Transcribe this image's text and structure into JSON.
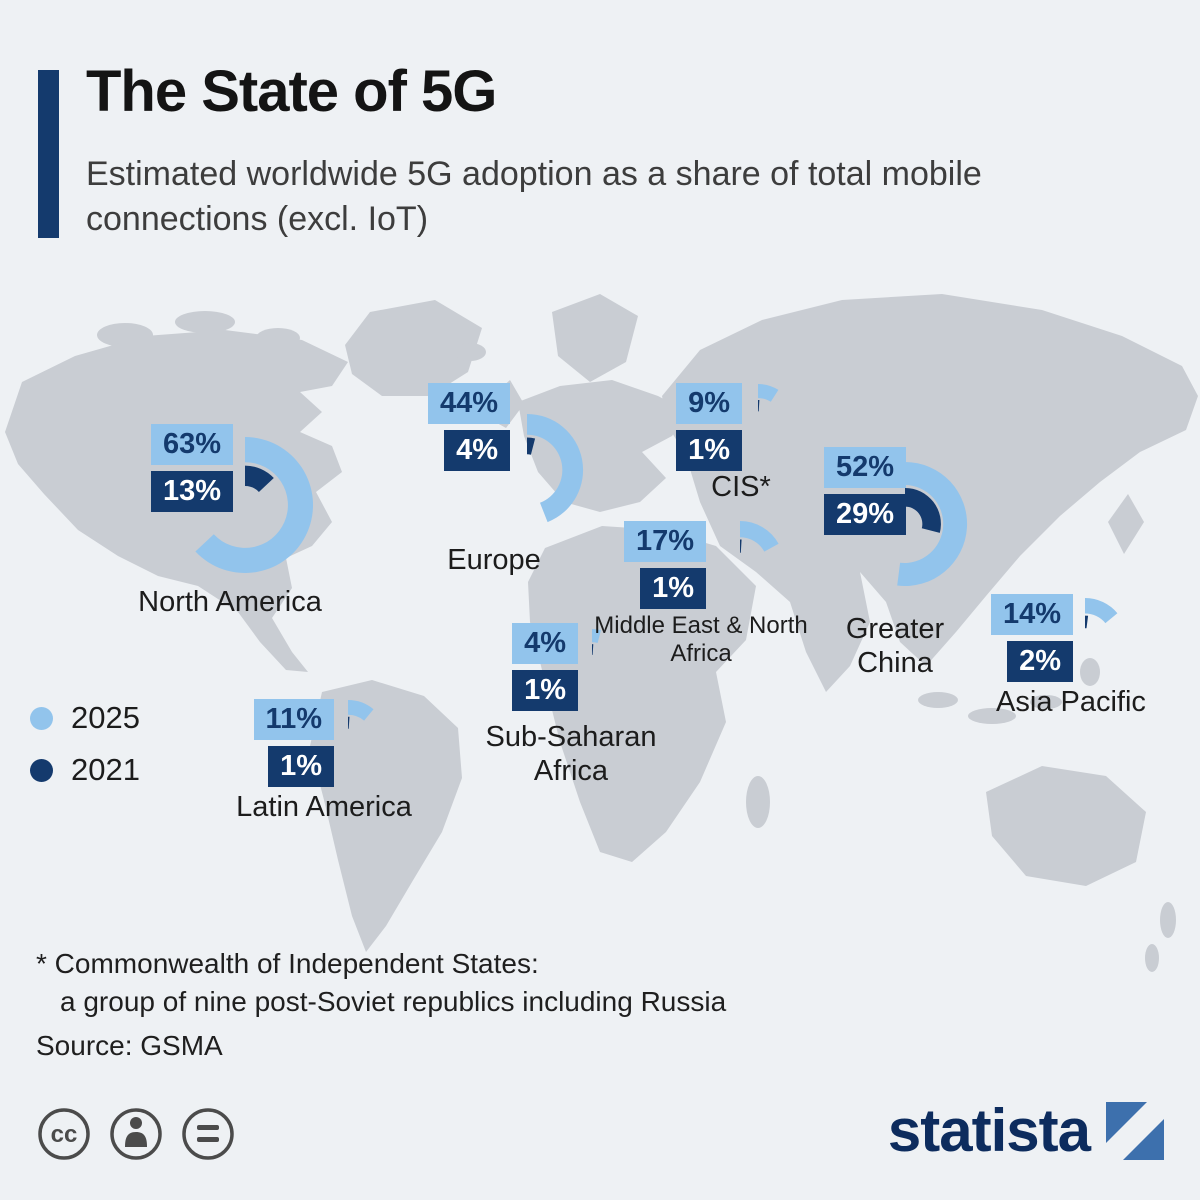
{
  "header": {
    "title": "The State of 5G",
    "subtitle": "Estimated worldwide 5G adoption as a share of total mobile connections (excl. IoT)"
  },
  "legend": [
    {
      "label": "2025",
      "color": "#92c4ec"
    },
    {
      "label": "2021",
      "color": "#143a6d"
    }
  ],
  "colors": {
    "c2025": "#92c4ec",
    "c2021": "#143a6d",
    "map": "#c9cdd3",
    "accent": "#143a6d"
  },
  "regions": {
    "north_america": {
      "name": "North America",
      "v2025": "63%",
      "v2021": "13%",
      "p2025": 63,
      "p2021": 13
    },
    "europe": {
      "name": "Europe",
      "v2025": "44%",
      "v2021": "4%",
      "p2025": 44,
      "p2021": 4
    },
    "cis": {
      "name": "CIS*",
      "v2025": "9%",
      "v2021": "1%",
      "p2025": 9,
      "p2021": 1
    },
    "greater_china": {
      "name": "Greater China",
      "v2025": "52%",
      "v2021": "29%",
      "p2025": 52,
      "p2021": 29
    },
    "mena": {
      "name": "Middle East & North Africa",
      "v2025": "17%",
      "v2021": "1%",
      "p2025": 17,
      "p2021": 1
    },
    "sub_saharan_africa": {
      "name": "Sub-Saharan Africa",
      "v2025": "4%",
      "v2021": "1%",
      "p2025": 4,
      "p2021": 1
    },
    "latin_america": {
      "name": "Latin America",
      "v2025": "11%",
      "v2021": "1%",
      "p2025": 11,
      "p2021": 1
    },
    "asia_pacific": {
      "name": "Asia Pacific",
      "v2025": "14%",
      "v2021": "2%",
      "p2025": 14,
      "p2021": 2
    }
  },
  "footnote": {
    "line1": "* Commonwealth of Independent States:",
    "line2": "a group of nine post-Soviet republics including Russia",
    "source": "Source: GSMA"
  },
  "branding": {
    "logo_text": "statista",
    "logo_icon": "statista-slash-icon"
  },
  "license_icons": [
    "cc-icon",
    "attribution-icon",
    "equals-icon"
  ],
  "chart_data": {
    "type": "pie",
    "subtype": "donut-arcs-on-map",
    "title": "The State of 5G",
    "subtitle": "Estimated worldwide 5G adoption as a share of total mobile connections (excl. IoT)",
    "unit": "%",
    "categories": [
      "North America",
      "Europe",
      "CIS*",
      "Greater China",
      "Middle East & North Africa",
      "Sub-Saharan Africa",
      "Latin America",
      "Asia Pacific"
    ],
    "series": [
      {
        "name": "2025",
        "color": "#92c4ec",
        "values": [
          63,
          44,
          9,
          52,
          17,
          4,
          11,
          14
        ]
      },
      {
        "name": "2021",
        "color": "#143a6d",
        "values": [
          13,
          4,
          1,
          29,
          1,
          1,
          1,
          2
        ]
      }
    ],
    "legend_position": "middle-left",
    "source": "GSMA",
    "footnote": "* Commonwealth of Independent States: a group of nine post-Soviet republics including Russia"
  }
}
